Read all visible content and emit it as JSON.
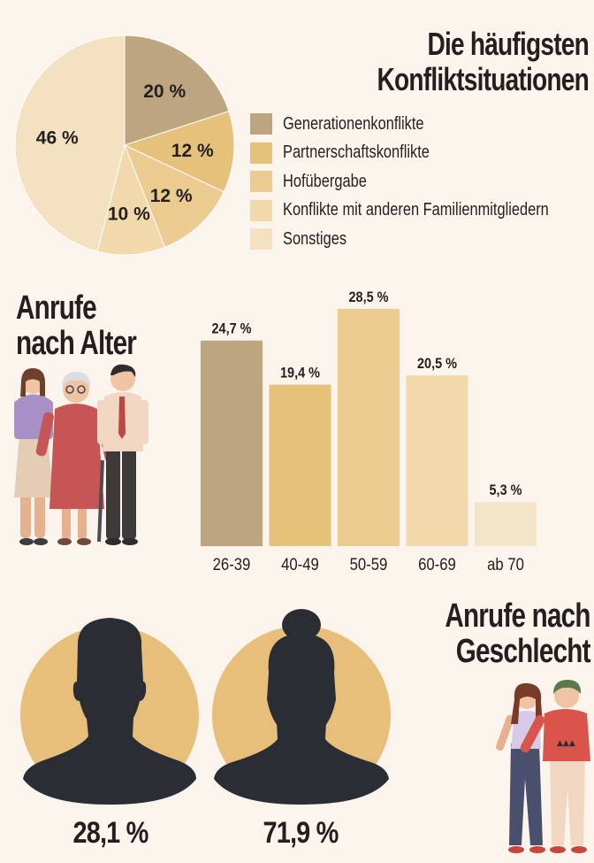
{
  "chart_data": [
    {
      "type": "pie",
      "title": "Die häufigsten Konfliktsituationen",
      "labels": [
        "Generationenkonflikte",
        "Partnerschaftskonflikte",
        "Hofübergabe",
        "Konflikte mit anderen Familienmitgliedern",
        "Sonstiges"
      ],
      "values": [
        20,
        12,
        12,
        10,
        46
      ],
      "value_labels": [
        "20 %",
        "12 %",
        "12 %",
        "10 %",
        "46 %"
      ],
      "colors": [
        "#bca57f",
        "#e6c17a",
        "#eccb90",
        "#f1d9ac",
        "#f4e1c1"
      ],
      "legend_position": "right"
    },
    {
      "type": "bar",
      "title": "Anrufe nach Alter",
      "categories": [
        "26-39",
        "40-49",
        "50-59",
        "60-69",
        "ab 70"
      ],
      "values": [
        24.7,
        19.4,
        28.5,
        20.5,
        5.3
      ],
      "value_labels": [
        "24,7 %",
        "19,4 %",
        "28,5 %",
        "20,5 %",
        "5,3 %"
      ],
      "colors": [
        "#bca57f",
        "#e6c17a",
        "#eccb90",
        "#f1d9ac",
        "#f4e4c8"
      ],
      "grid": false
    },
    {
      "type": "pictogram",
      "title": "Anrufe nach Geschlecht",
      "categories": [
        "male",
        "female"
      ],
      "values": [
        28.1,
        71.9
      ],
      "value_labels": [
        "28,1 %",
        "71,9 %"
      ],
      "circle_color": "#e8bf7a",
      "silhouette_color": "#2a2e34"
    }
  ],
  "titles": {
    "pie": [
      "Die häufigsten",
      "Konfliktsituationen"
    ],
    "age": [
      "Anrufe",
      "nach Alter"
    ],
    "gender": [
      "Anrufe nach",
      "Geschlecht"
    ]
  },
  "icons": {
    "family_group": "three-people-illustration",
    "couple": "couple-illustration",
    "male": "male-silhouette-icon",
    "female": "female-silhouette-icon"
  }
}
